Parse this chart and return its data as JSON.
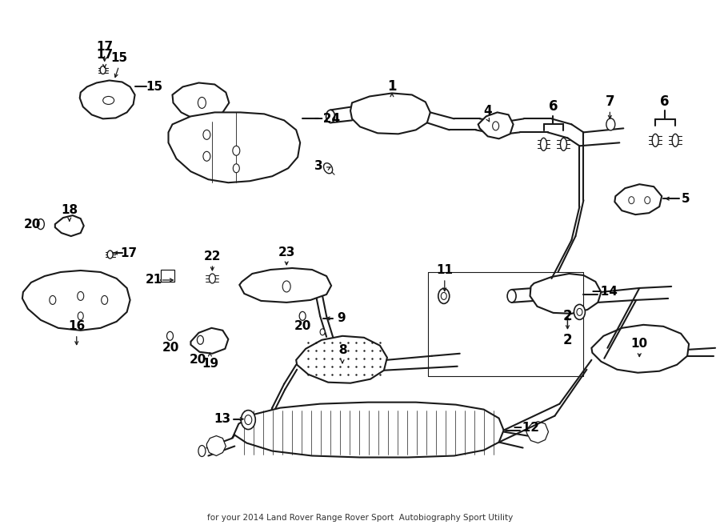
{
  "bg_color": "#ffffff",
  "line_color": "#1a1a1a",
  "text_color": "#000000",
  "fig_width": 9.0,
  "fig_height": 6.61,
  "dpi": 100,
  "subtitle": "for your 2014 Land Rover Range Rover Sport  Autobiography Sport Utility"
}
